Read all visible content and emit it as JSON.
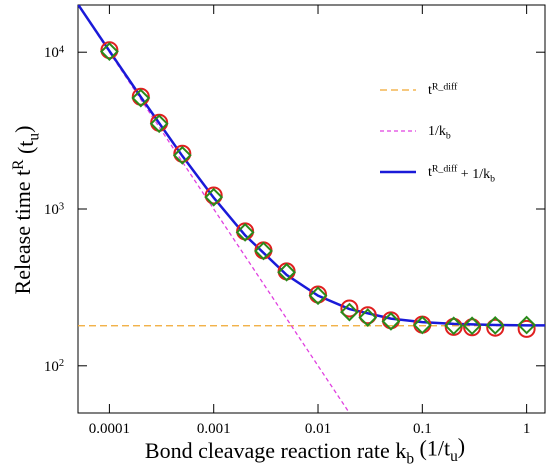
{
  "chart_data": {
    "type": "line",
    "xlabel": "Bond cleavage reaction rate  k_b  (1/t_u)",
    "ylabel": "Release time  t^R  (t_u)",
    "xscale": "log",
    "yscale": "log",
    "xlim": [
      5e-05,
      1.5
    ],
    "ylim": [
      50,
      20000
    ],
    "xticks": [
      0.0001,
      0.001,
      0.01,
      0.1,
      1
    ],
    "yticks": [
      {
        "value": 100,
        "label": "10^2"
      },
      {
        "value": 1000,
        "label": "10^3"
      },
      {
        "value": 10000,
        "label": "10^4"
      }
    ],
    "legend": "upper right",
    "series": [
      {
        "name": "t^R_diff",
        "color": "#f0a830",
        "dash": "dashed",
        "x": [
          5e-05,
          1.5
        ],
        "values": [
          180,
          180
        ]
      },
      {
        "name": "1/k_b",
        "color": "#e040e0",
        "dash": "dotted",
        "x": [
          5e-05,
          0.02
        ],
        "values": [
          20000,
          50
        ]
      },
      {
        "name": "t^R_diff + 1/k_b",
        "color": "#1a1ad8",
        "dash": "solid",
        "x": [
          5e-05,
          0.0001,
          0.0002,
          0.0005,
          0.001,
          0.002,
          0.005,
          0.01,
          0.02,
          0.05,
          0.1,
          0.2,
          0.5,
          1,
          1.5
        ],
        "values": [
          20180,
          10180,
          5180,
          2180,
          1180,
          680,
          380,
          280,
          230,
          200,
          190,
          185,
          182,
          181,
          181
        ]
      },
      {
        "color": "#e02020",
        "marker": "circle",
        "x": [
          0.0001,
          0.0002,
          0.0003,
          0.0005,
          0.001,
          0.002,
          0.003,
          0.005,
          0.01,
          0.02,
          0.03,
          0.05,
          0.1,
          0.2,
          0.3,
          0.5,
          1
        ],
        "values": [
          10300,
          5200,
          3550,
          2250,
          1220,
          720,
          545,
          400,
          285,
          232,
          210,
          195,
          183,
          177,
          176,
          175,
          172
        ]
      },
      {
        "color": "#2a8a1a",
        "marker": "diamond",
        "x": [
          0.0001,
          0.0002,
          0.0003,
          0.0005,
          0.001,
          0.002,
          0.003,
          0.005,
          0.01,
          0.02,
          0.03,
          0.05,
          0.1,
          0.2,
          0.3,
          0.5,
          1
        ],
        "values": [
          10100,
          5100,
          3500,
          2200,
          1190,
          710,
          540,
          395,
          280,
          220,
          203,
          192,
          182,
          180,
          180,
          181,
          182
        ]
      }
    ]
  }
}
